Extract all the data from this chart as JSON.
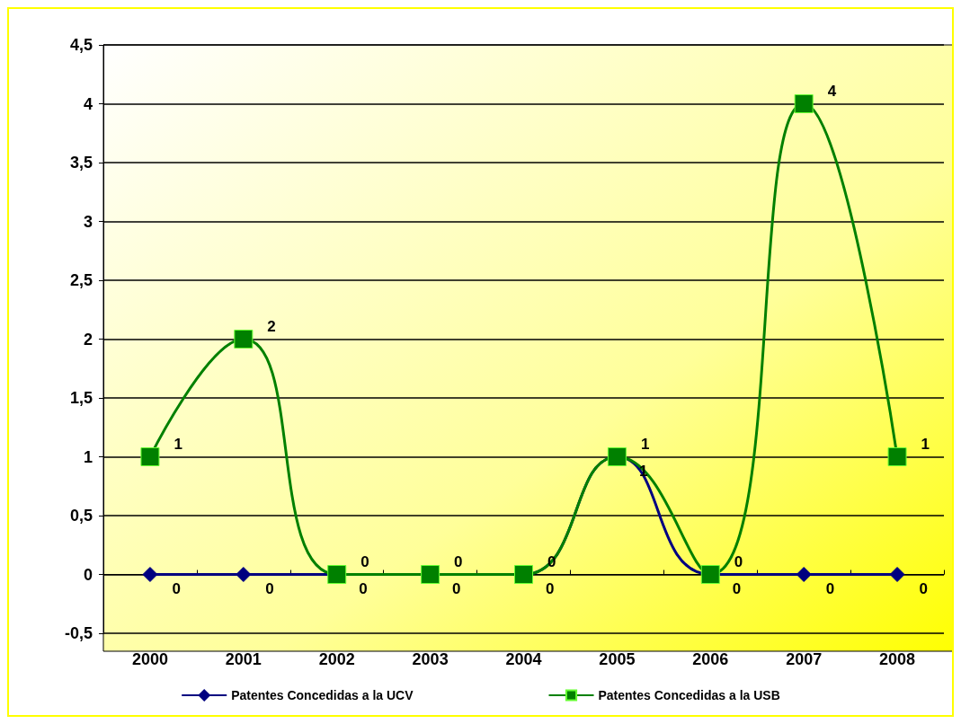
{
  "chart_data": {
    "type": "line",
    "categories": [
      "2000",
      "2001",
      "2002",
      "2003",
      "2004",
      "2005",
      "2006",
      "2007",
      "2008"
    ],
    "series": [
      {
        "name": "Patentes Concedidas a la UCV",
        "color": "#000080",
        "marker": "diamond",
        "values": [
          0,
          0,
          0,
          0,
          0,
          1,
          0,
          0,
          0
        ]
      },
      {
        "name": "Patentes Concedidas a la USB",
        "color": "#008000",
        "marker": "square",
        "values": [
          1,
          2,
          0,
          0,
          0,
          1,
          0,
          4,
          1
        ]
      }
    ],
    "ylim": [
      -0.5,
      4.5
    ],
    "yticks": [
      {
        "value": -0.5,
        "label": "-0,5"
      },
      0,
      {
        "value": 0.5,
        "label": "0,5"
      },
      1,
      {
        "value": 1.5,
        "label": "1,5"
      },
      2,
      {
        "value": 2.5,
        "label": "2,5"
      },
      3,
      {
        "value": 3.5,
        "label": "3,5"
      },
      4,
      {
        "value": 4.5,
        "label": "4,5"
      }
    ],
    "grid": "y",
    "legend": "bottom",
    "data_labels": true
  }
}
